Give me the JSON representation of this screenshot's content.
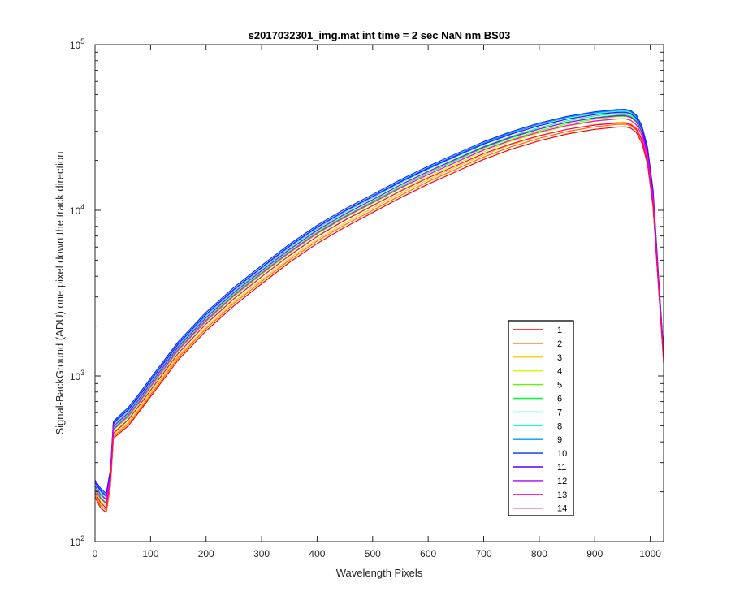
{
  "chart_data": {
    "type": "line",
    "title": "s2017032301_img.mat int time = 2 sec  NaN nm BS03",
    "xlabel": "Wavelength Pixels",
    "ylabel": "Signal-BackGround (ADU) one pixel down the track direction",
    "x_scale": "linear",
    "y_scale": "log",
    "xlim": [
      0,
      1024
    ],
    "ylim": [
      100,
      100000
    ],
    "x_ticks": [
      "0",
      "100",
      "200",
      "300",
      "400",
      "500",
      "600",
      "700",
      "800",
      "900",
      "1000"
    ],
    "y_ticks": [
      {
        "base": "10",
        "exp": "2"
      },
      {
        "base": "10",
        "exp": "3"
      },
      {
        "base": "10",
        "exp": "4"
      },
      {
        "base": "10",
        "exp": "5"
      }
    ],
    "legend_position": "lower-right",
    "x": [
      0,
      10,
      20,
      28,
      33,
      40,
      60,
      80,
      100,
      150,
      200,
      250,
      300,
      350,
      400,
      450,
      500,
      550,
      600,
      650,
      700,
      750,
      800,
      850,
      900,
      940,
      955,
      965,
      975,
      985,
      995,
      1005,
      1015,
      1024
    ],
    "series": [
      {
        "name": "1",
        "color": "#ff0000",
        "values": [
          185,
          160,
          150,
          220,
          420,
          440,
          500,
          610,
          750,
          1250,
          1870,
          2650,
          3600,
          4850,
          6300,
          7900,
          9700,
          11900,
          14400,
          17100,
          20300,
          23400,
          26300,
          28900,
          30800,
          31800,
          31900,
          31300,
          29500,
          25500,
          19000,
          10500,
          3400,
          1200
        ]
      },
      {
        "name": "2",
        "color": "#ff6a00",
        "values": [
          190,
          165,
          155,
          225,
          430,
          450,
          515,
          625,
          770,
          1290,
          1930,
          2740,
          3720,
          5000,
          6520,
          8170,
          10000,
          12300,
          14900,
          17700,
          21000,
          24200,
          27200,
          29900,
          31900,
          33000,
          33100,
          32400,
          30500,
          26400,
          19600,
          10800,
          3500,
          1220
        ]
      },
      {
        "name": "3",
        "color": "#ffcc00",
        "values": [
          195,
          170,
          160,
          230,
          440,
          460,
          525,
          640,
          790,
          1320,
          1980,
          2810,
          3820,
          5130,
          6690,
          8390,
          10300,
          12650,
          15300,
          18200,
          21600,
          24900,
          28000,
          30800,
          32900,
          34000,
          34100,
          33400,
          31400,
          27200,
          20200,
          11100,
          3550,
          1240
        ]
      },
      {
        "name": "4",
        "color": "#ccff00",
        "values": [
          200,
          175,
          165,
          240,
          460,
          480,
          550,
          670,
          825,
          1380,
          2070,
          2940,
          4000,
          5370,
          7000,
          8780,
          10750,
          13200,
          16000,
          19000,
          22600,
          26000,
          29300,
          32200,
          34400,
          35600,
          35700,
          35000,
          32900,
          28500,
          21100,
          11600,
          3650,
          1260
        ]
      },
      {
        "name": "5",
        "color": "#55ff00",
        "values": [
          205,
          180,
          170,
          245,
          470,
          495,
          565,
          690,
          850,
          1420,
          2130,
          3020,
          4110,
          5520,
          7200,
          9030,
          11050,
          13600,
          16450,
          19550,
          23250,
          26800,
          30200,
          33200,
          35500,
          36800,
          36900,
          36200,
          34000,
          29400,
          21800,
          12000,
          3700,
          1280
        ]
      },
      {
        "name": "6",
        "color": "#00ff33",
        "values": [
          210,
          185,
          172,
          250,
          480,
          505,
          580,
          705,
          870,
          1450,
          2180,
          3090,
          4200,
          5640,
          7360,
          9230,
          11300,
          13900,
          16800,
          20000,
          23800,
          27400,
          30900,
          34000,
          36300,
          37600,
          37700,
          37000,
          34800,
          30100,
          22300,
          12300,
          3750,
          1300
        ]
      },
      {
        "name": "7",
        "color": "#00ff99",
        "values": [
          215,
          190,
          178,
          255,
          490,
          515,
          590,
          720,
          890,
          1480,
          2230,
          3160,
          4290,
          5760,
          7520,
          9430,
          11550,
          14200,
          17200,
          20450,
          24300,
          28000,
          31600,
          34700,
          37100,
          38400,
          38500,
          37800,
          35500,
          30700,
          22800,
          12600,
          3800,
          1320
        ]
      },
      {
        "name": "8",
        "color": "#00ffff",
        "values": [
          225,
          200,
          185,
          265,
          510,
          535,
          615,
          745,
          920,
          1530,
          2300,
          3260,
          4430,
          5950,
          7760,
          9730,
          11900,
          14650,
          17700,
          21050,
          25000,
          28800,
          32500,
          35700,
          38100,
          39400,
          39500,
          38700,
          36400,
          31500,
          23300,
          12900,
          3850,
          1340
        ]
      },
      {
        "name": "9",
        "color": "#0099ff",
        "values": [
          230,
          205,
          190,
          270,
          520,
          550,
          630,
          765,
          945,
          1570,
          2360,
          3340,
          4530,
          6090,
          7940,
          9950,
          12200,
          15000,
          18100,
          21500,
          25500,
          29400,
          33100,
          36400,
          38800,
          40100,
          40200,
          39400,
          37000,
          32000,
          23700,
          13100,
          3900,
          1360
        ]
      },
      {
        "name": "10",
        "color": "#0033ff",
        "values": [
          235,
          210,
          195,
          275,
          530,
          560,
          645,
          785,
          970,
          1610,
          2420,
          3420,
          4640,
          6230,
          8120,
          10180,
          12450,
          15300,
          18450,
          21900,
          25950,
          29900,
          33600,
          36900,
          39300,
          40600,
          40700,
          39900,
          37500,
          32400,
          24000,
          13300,
          3950,
          1380
        ]
      },
      {
        "name": "11",
        "color": "#5500ff",
        "values": [
          228,
          203,
          188,
          268,
          515,
          545,
          625,
          760,
          940,
          1560,
          2350,
          3320,
          4510,
          6060,
          7900,
          9900,
          12100,
          14850,
          17900,
          21250,
          25150,
          28900,
          32400,
          35500,
          37800,
          39000,
          39100,
          38300,
          36000,
          31100,
          23000,
          12700,
          3800,
          1350
        ]
      },
      {
        "name": "12",
        "color": "#aa00ff",
        "values": [
          218,
          193,
          180,
          258,
          495,
          522,
          600,
          730,
          900,
          1500,
          2250,
          3190,
          4330,
          5810,
          7580,
          9500,
          11600,
          14250,
          17150,
          20350,
          24100,
          27700,
          31000,
          33900,
          36100,
          37200,
          37300,
          36500,
          34300,
          29700,
          22000,
          12150,
          3700,
          1320
        ]
      },
      {
        "name": "13",
        "color": "#ff00ff",
        "values": [
          208,
          183,
          170,
          248,
          475,
          500,
          575,
          700,
          865,
          1440,
          2160,
          3060,
          4160,
          5580,
          7280,
          9120,
          11150,
          13650,
          16450,
          19500,
          23100,
          26500,
          29700,
          32500,
          34600,
          35600,
          35700,
          34900,
          32800,
          28400,
          21000,
          11600,
          3600,
          1290
        ]
      },
      {
        "name": "14",
        "color": "#ff0066",
        "values": [
          198,
          172,
          160,
          235,
          450,
          472,
          545,
          665,
          820,
          1370,
          2060,
          2920,
          3970,
          5330,
          6950,
          8710,
          10650,
          13050,
          15700,
          18600,
          22000,
          25200,
          28200,
          30800,
          32700,
          33600,
          33700,
          32900,
          30900,
          26700,
          19700,
          10900,
          3450,
          1250
        ]
      }
    ]
  }
}
